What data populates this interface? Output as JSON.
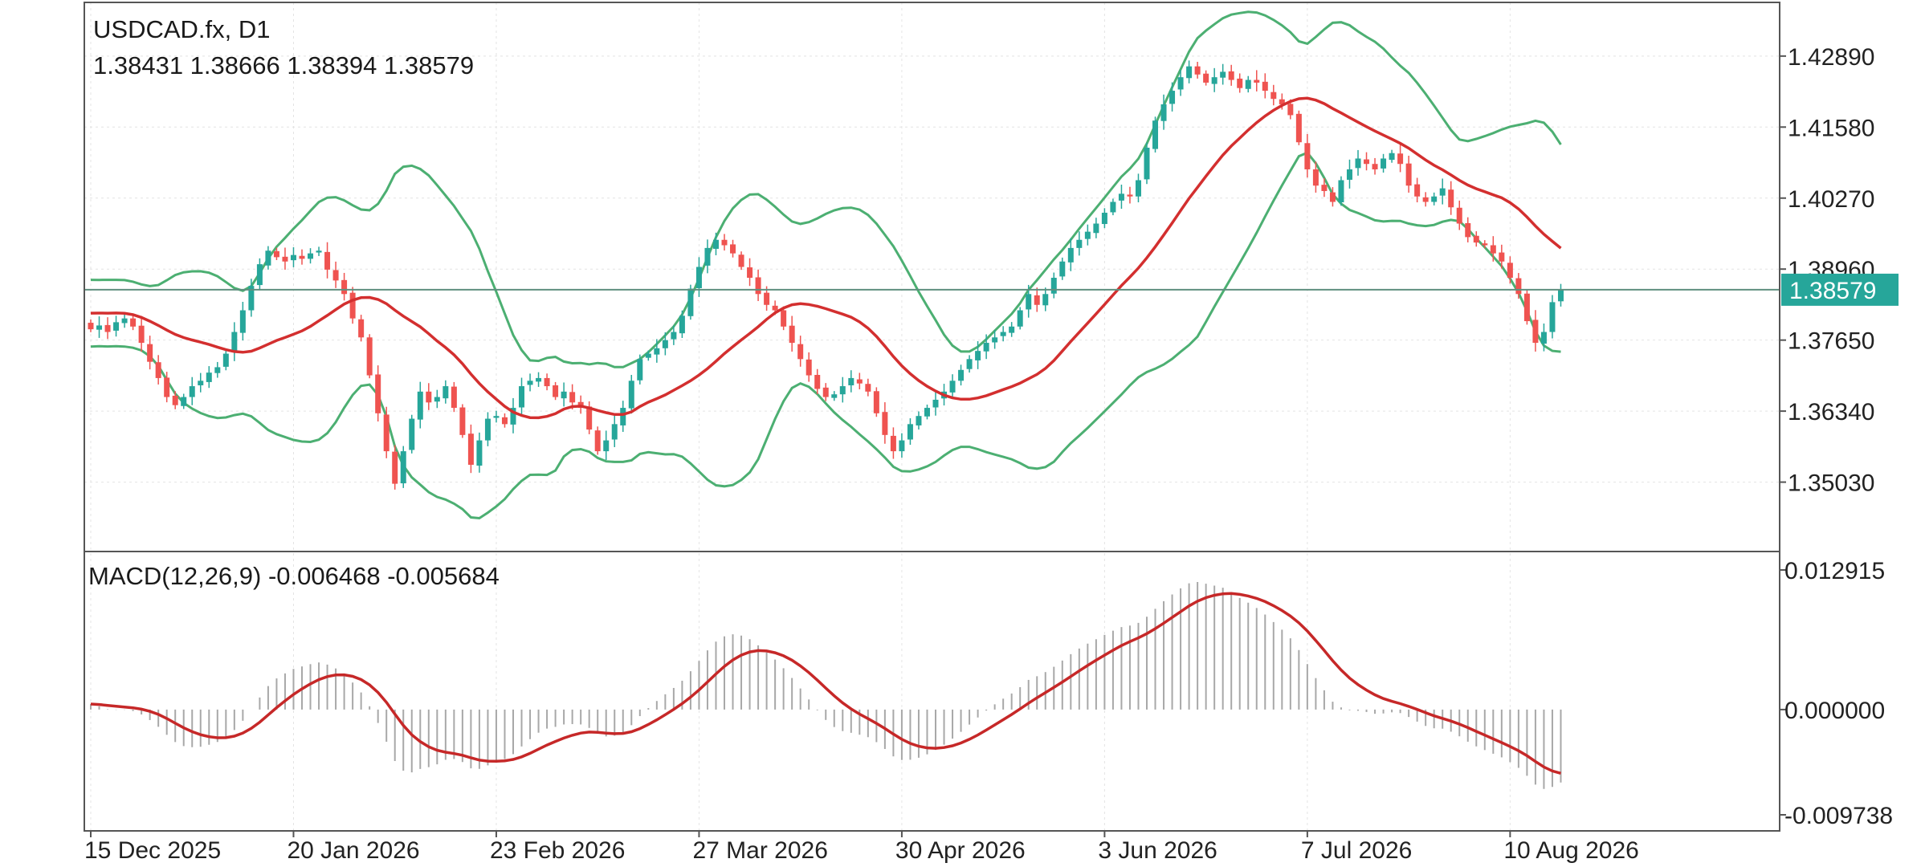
{
  "chart_data": {
    "type": "candlestick",
    "symbol_label": "USDCAD.fx, D1",
    "ohlc_label": "1.38431 1.38666 1.38394 1.38579",
    "current_price_label": "1.38579",
    "current_price": 1.38579,
    "price_axis": {
      "ticks": [
        "1.42890",
        "1.41580",
        "1.40270",
        "1.38960",
        "1.37650",
        "1.36340",
        "1.35030"
      ],
      "range": [
        1.3375,
        1.4388
      ]
    },
    "macd_label": "MACD(12,26,9) -0.006468 -0.005684",
    "macd_axis": {
      "ticks": [
        "0.012915",
        "0.000000",
        "-0.009738"
      ],
      "range": [
        -0.009738,
        0.012915
      ]
    },
    "x_labels": [
      "15 Dec 2025",
      "20 Jan 2026",
      "23 Feb 2026",
      "27 Mar 2026",
      "30 Apr 2026",
      "3 Jun 2026",
      "7 Jul 2026",
      "10 Aug 2026"
    ],
    "x_label_bars": [
      0,
      24,
      48,
      72,
      96,
      120,
      144,
      168
    ],
    "closes": [
      1.3785,
      1.3792,
      1.378,
      1.3798,
      1.3805,
      1.379,
      1.376,
      1.3725,
      1.3695,
      1.366,
      1.3645,
      1.366,
      1.368,
      1.369,
      1.3705,
      1.3715,
      1.374,
      1.378,
      1.382,
      1.3865,
      1.3905,
      1.393,
      1.3918,
      1.391,
      1.3922,
      1.3915,
      1.3925,
      1.393,
      1.3895,
      1.3875,
      1.385,
      1.3805,
      1.377,
      1.37,
      1.363,
      1.356,
      1.35,
      1.356,
      1.362,
      1.367,
      1.365,
      1.366,
      1.368,
      1.364,
      1.359,
      1.3535,
      1.358,
      1.362,
      1.3625,
      1.361,
      1.364,
      1.368,
      1.369,
      1.3695,
      1.368,
      1.366,
      1.367,
      1.365,
      1.364,
      1.36,
      1.356,
      1.358,
      1.361,
      1.364,
      1.369,
      1.373,
      1.374,
      1.375,
      1.3765,
      1.378,
      1.381,
      1.386,
      1.39,
      1.3935,
      1.395,
      1.394,
      1.3925,
      1.39,
      1.388,
      1.385,
      1.383,
      1.382,
      1.379,
      1.376,
      1.373,
      1.37,
      1.3675,
      1.366,
      1.3665,
      1.368,
      1.3695,
      1.3685,
      1.367,
      1.363,
      1.359,
      1.356,
      1.358,
      1.361,
      1.3625,
      1.364,
      1.3655,
      1.367,
      1.369,
      1.371,
      1.373,
      1.3745,
      1.376,
      1.377,
      1.378,
      1.379,
      1.382,
      1.385,
      1.383,
      1.385,
      1.388,
      1.391,
      1.3935,
      1.395,
      1.3965,
      1.398,
      1.4,
      1.402,
      1.4035,
      1.403,
      1.406,
      1.412,
      1.417,
      1.42,
      1.4225,
      1.425,
      1.427,
      1.4255,
      1.424,
      1.425,
      1.426,
      1.4245,
      1.423,
      1.4245,
      1.424,
      1.4225,
      1.421,
      1.42,
      1.418,
      1.413,
      1.408,
      1.405,
      1.404,
      1.402,
      1.406,
      1.408,
      1.41,
      1.409,
      1.408,
      1.41,
      1.411,
      1.409,
      1.405,
      1.403,
      1.402,
      1.403,
      1.4045,
      1.401,
      1.398,
      1.3955,
      1.3945,
      1.394,
      1.3925,
      1.391,
      1.388,
      1.385,
      1.38,
      1.376,
      1.378,
      1.3835,
      1.38579
    ]
  },
  "colors": {
    "bull": "#26a69a",
    "bear": "#ef5350",
    "ma": "#d32f2f",
    "bands": "#4caf72",
    "price_line": "#5f8f7f",
    "macd_line": "#c62828",
    "histogram": "#a8a8a8",
    "axis": "#555555"
  }
}
